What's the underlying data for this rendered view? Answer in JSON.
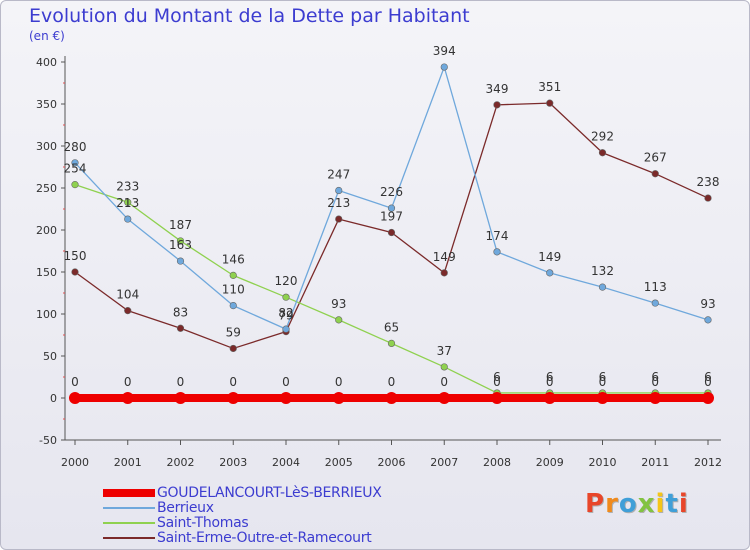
{
  "title": "Evolution du Montant de la Dette par Habitant",
  "unit_label": "(en €)",
  "logo": {
    "text": "Proxiti",
    "letters": [
      "P",
      "r",
      "o",
      "x",
      "i",
      "t",
      "i"
    ],
    "colors": [
      "#e8462a",
      "#f08a1c",
      "#3f9fd8",
      "#82c341",
      "#f5c518",
      "#3f9fd8",
      "#e8462a"
    ]
  },
  "chart_data": {
    "type": "line",
    "title": "Evolution du Montant de la Dette par Habitant",
    "ylabel": "(en €)",
    "xlabel": "",
    "x": [
      "2000",
      "2001",
      "2002",
      "2003",
      "2004",
      "2005",
      "2006",
      "2007",
      "2008",
      "2009",
      "2010",
      "2011",
      "2012"
    ],
    "ylim": [
      -50,
      400
    ],
    "yticks": [
      "-50",
      "0",
      "50",
      "100",
      "150",
      "200",
      "250",
      "300",
      "350",
      "400"
    ],
    "grid": false,
    "legend_position": "bottom-left",
    "series": [
      {
        "name": "GOUDELANCOURT-LèS-BERRIEUX",
        "color": "#ee0000",
        "values": [
          0,
          0,
          0,
          0,
          0,
          0,
          0,
          0,
          0,
          0,
          0,
          0,
          0
        ],
        "labels": [
          "0",
          "0",
          "0",
          "0",
          "0",
          "0",
          "0",
          "0",
          "0",
          "0",
          "0",
          "0",
          "0"
        ]
      },
      {
        "name": "Berrieux",
        "color": "#6fa8dc",
        "values": [
          280,
          213,
          163,
          110,
          82,
          247,
          226,
          394,
          174,
          149,
          132,
          113,
          93
        ],
        "labels": [
          "280",
          "213",
          "163",
          "110",
          "82",
          "247",
          "226",
          "394",
          "174",
          "149",
          "132",
          "113",
          "93"
        ]
      },
      {
        "name": "Saint-Thomas",
        "color": "#8fd14f",
        "values": [
          254,
          233,
          187,
          146,
          120,
          93,
          65,
          37,
          6,
          6,
          6,
          6,
          6
        ],
        "labels": [
          "254",
          "233",
          "187",
          "146",
          "120",
          "93",
          "65",
          "37",
          "6",
          "6",
          "6",
          "6",
          "6"
        ]
      },
      {
        "name": "Saint-Erme-Outre-et-Ramecourt",
        "color": "#7b2a2a",
        "values": [
          150,
          104,
          83,
          59,
          79,
          213,
          197,
          149,
          349,
          351,
          292,
          267,
          238
        ],
        "labels": [
          "150",
          "104",
          "83",
          "59",
          "79",
          "213",
          "197",
          "149",
          "349",
          "351",
          "292",
          "267",
          "238"
        ]
      }
    ]
  }
}
